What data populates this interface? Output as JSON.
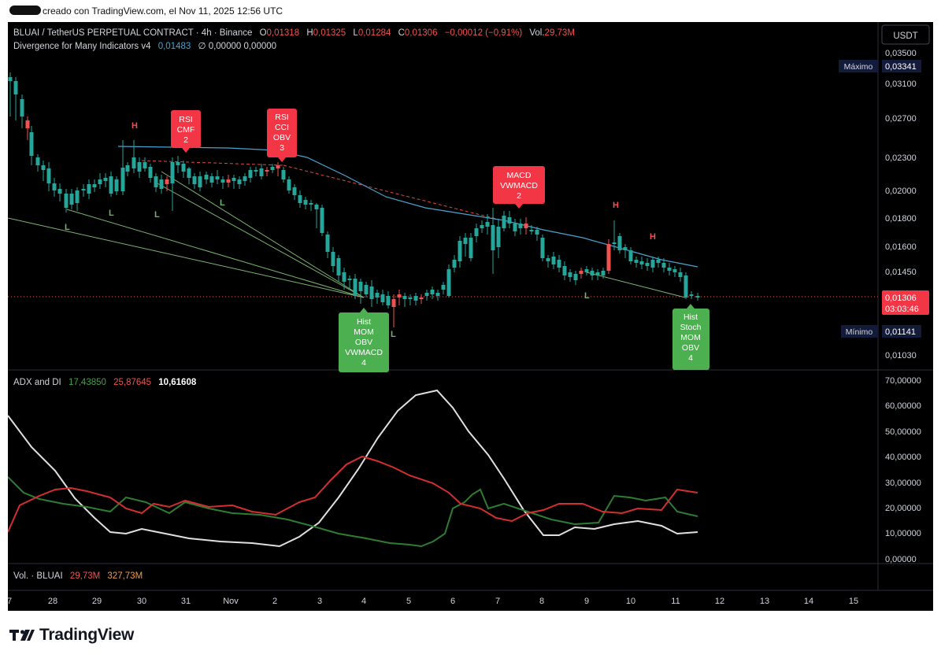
{
  "header": {
    "created_text": "creado con TradingView.com, el Nov 11, 2025 12:56 UTC"
  },
  "legend": {
    "symbol": "BLUAI / TetherUS PERPETUAL CONTRACT · 4h · Binance",
    "o_label": "O",
    "o_val": "0,01318",
    "h_label": "H",
    "h_val": "0,01325",
    "l_label": "L",
    "l_val": "0,01284",
    "c_label": "C",
    "c_val": "0,01306",
    "change": "−0,00012 (−0,91%)",
    "vol_label": "Vol.",
    "vol_val": "29,73M",
    "indicator_name": "Divergence for Many Indicators v4",
    "indicator_val": "0,01483",
    "indicator_extra": "∅ 0,00000 0,00000"
  },
  "currency_button": "USDT",
  "price_axis": {
    "ticks": [
      "0,03500",
      "0,03100",
      "0,02700",
      "0,02300",
      "0,02000",
      "0,01800",
      "0,01600",
      "0,01450",
      "0,01030"
    ],
    "max_label": "Máximo",
    "max_val": "0,03341",
    "current_val": "0,01306",
    "countdown": "03:03:46",
    "min_label": "Mínimo",
    "min_val": "0,01141"
  },
  "signals": {
    "bear1": [
      "RSI",
      "CMF",
      "2"
    ],
    "bear2": [
      "RSI",
      "CCI",
      "OBV",
      "3"
    ],
    "bear3": [
      "MACD",
      "VWMACD",
      "2"
    ],
    "bull1": [
      "Hist",
      "MOM",
      "OBV",
      "VWMACD",
      "4"
    ],
    "bull2": [
      "Hist",
      "Stoch",
      "MOM",
      "OBV",
      "4"
    ],
    "pivot_h": "H",
    "pivot_l": "L"
  },
  "adx": {
    "title": "ADX and DI",
    "v1": "17,43850",
    "v2": "25,87645",
    "v3": "10,61608",
    "ticks": [
      "70,00000",
      "60,00000",
      "50,00000",
      "40,00000",
      "30,00000",
      "20,00000",
      "10,00000",
      "0,00000"
    ]
  },
  "volume_pane": {
    "title": "Vol. · BLUAI",
    "v1": "29,73M",
    "v2": "327,73M"
  },
  "time_axis": {
    "labels": [
      "7",
      "28",
      "29",
      "30",
      "31",
      "Nov",
      "2",
      "3",
      "4",
      "5",
      "6",
      "7",
      "8",
      "9",
      "10",
      "11",
      "12",
      "13",
      "14",
      "15"
    ]
  },
  "brand": {
    "name": "TradingView"
  },
  "colors": {
    "up": "#26a69a",
    "down": "#ef5350",
    "bull_label": "#4caf50",
    "bear_label": "#f23645",
    "ma_line": "#4aa3d1",
    "adx": "#e0e0e0",
    "di_plus": "#2e7d32",
    "di_minus": "#d32f2f"
  }
}
